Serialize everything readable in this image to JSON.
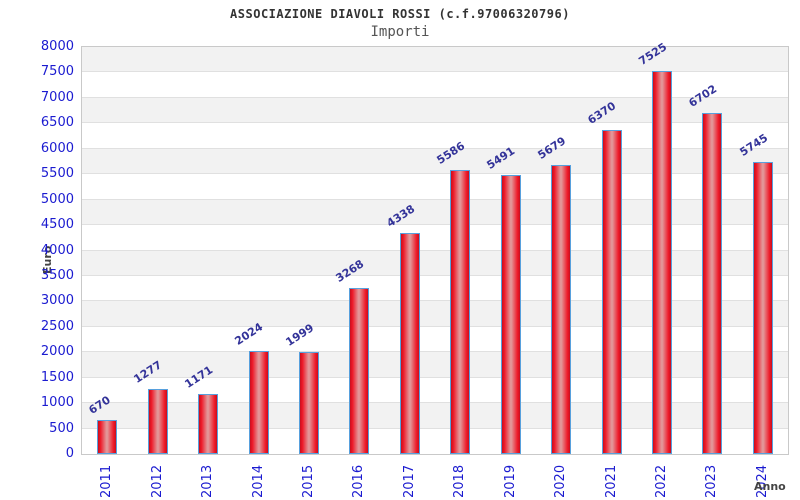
{
  "header": {
    "title": "ASSOCIAZIONE DIAVOLI ROSSI (c.f.97006320796)",
    "subtitle": "Importi"
  },
  "chart_data": {
    "type": "bar",
    "title": "ASSOCIAZIONE DIAVOLI ROSSI (c.f.97006320796)",
    "subtitle": "Importi",
    "xlabel": "Anno",
    "ylabel": "Euro",
    "categories": [
      "2011",
      "2012",
      "2013",
      "2014",
      "2015",
      "2016",
      "2017",
      "2018",
      "2019",
      "2020",
      "2021",
      "2022",
      "2023",
      "2024"
    ],
    "values": [
      670,
      1277,
      1171,
      2024,
      1999,
      3268,
      4338,
      5586,
      5491,
      5679,
      6370,
      7525,
      6702,
      5745
    ],
    "ylim": [
      0,
      8000
    ],
    "ytick_step": 500,
    "grid": "horizontal-bands-alternating",
    "legend": "none",
    "colors": {
      "bar_edge_red": "#c90e1d",
      "bar_main_red": "#ee1a29",
      "bar_center_highlight": "#e39597",
      "bar_border": "#57a0dd",
      "tick_label_blue": "#1b1bd0",
      "value_label_navy": "#333399",
      "band_gray": "#f2f2f2",
      "gridline": "#e0e0e0",
      "plot_border": "#c9c9c9",
      "axis_label_gray": "#444444",
      "title_color": "#333333",
      "subtitle_color": "#555555"
    }
  }
}
